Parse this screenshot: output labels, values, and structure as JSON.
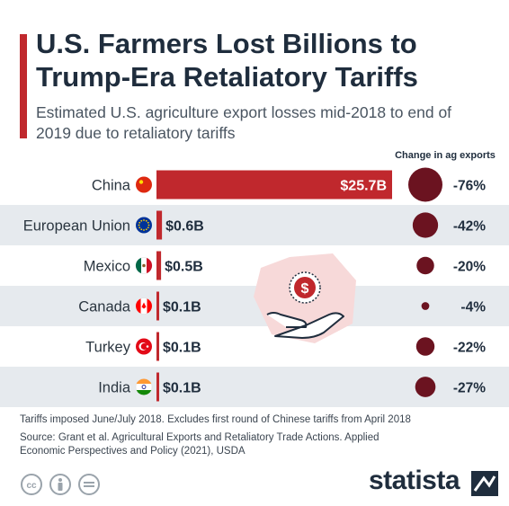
{
  "title": "U.S. Farmers Lost Billions to Trump-Era Retaliatory Tariffs",
  "subtitle": "Estimated U.S. agriculture export losses mid-2018 to end of 2019 due to retaliatory tariffs",
  "change_header": "Change in ag exports",
  "footnote": "Tariffs imposed June/July 2018. Excludes first round of Chinese tariffs from April 2018",
  "source": "Source: Grant et al. Agricultural Exports and Retaliatory Trade Actions. Applied Economic Perspectives and Policy (2021), USDA",
  "brand": "statista",
  "icons": {
    "cc": "creative-commons-icon",
    "by": "attribution-person-icon",
    "nd": "no-derivatives-icon",
    "illustration": "hand-holding-dollar-coin-icon"
  },
  "colors": {
    "bar": "#c0282d",
    "circle": "#6b1320",
    "accent": "#c0282d",
    "row_stripe": "#e6eaee",
    "illustration_bg": "#f7d9d9"
  },
  "chart_data": {
    "type": "bar",
    "orientation": "horizontal",
    "categories": [
      "China",
      "European Union",
      "Mexico",
      "Canada",
      "Turkey",
      "India"
    ],
    "values": [
      25.7,
      0.6,
      0.5,
      0.1,
      0.1,
      0.1
    ],
    "value_labels": [
      "$25.7B",
      "$0.6B",
      "$0.5B",
      "$0.1B",
      "$0.1B",
      "$0.1B"
    ],
    "change_pct": [
      -76,
      -42,
      -20,
      -4,
      -22,
      -27
    ],
    "change_labels": [
      "-76%",
      "-42%",
      "-20%",
      "-4%",
      "-22%",
      "-27%"
    ],
    "flags": [
      "china-flag-icon",
      "eu-flag-icon",
      "mexico-flag-icon",
      "canada-flag-icon",
      "turkey-flag-icon",
      "india-flag-icon"
    ],
    "title": "U.S. Farmers Lost Billions to Trump-Era Retaliatory Tariffs",
    "xlabel": "",
    "ylabel": "",
    "grid": false
  }
}
